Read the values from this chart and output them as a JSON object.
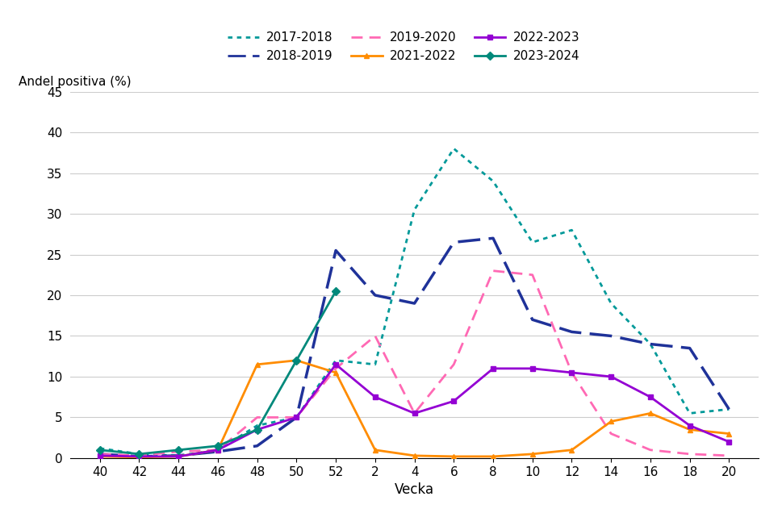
{
  "title": "",
  "ylabel": "Andel positiva (%)",
  "xlabel": "Vecka",
  "ylim": [
    0,
    45
  ],
  "x_ticks_labels": [
    "40",
    "42",
    "44",
    "46",
    "48",
    "50",
    "52",
    "2",
    "4",
    "6",
    "8",
    "10",
    "12",
    "14",
    "16",
    "18",
    "20"
  ],
  "x_numeric": [
    40,
    42,
    44,
    46,
    48,
    50,
    52,
    54,
    56,
    58,
    60,
    62,
    64,
    66,
    68,
    70,
    72
  ],
  "series": [
    {
      "label": "2017-2018",
      "color": "#009999",
      "linestyle": "dotted",
      "linewidth": 2.0,
      "marker": null,
      "data": [
        1.2,
        0.5,
        0.3,
        1.0,
        4.0,
        5.0,
        12.0,
        11.5,
        30.5,
        38.0,
        34.0,
        26.5,
        28.0,
        19.0,
        14.0,
        5.5,
        6.0
      ]
    },
    {
      "label": "2018-2019",
      "color": "#1F3299",
      "linestyle": "dashed",
      "linewidth": 2.5,
      "marker": null,
      "data": [
        0.5,
        0.2,
        0.3,
        0.8,
        1.5,
        5.0,
        25.5,
        20.0,
        19.0,
        26.5,
        27.0,
        17.0,
        15.5,
        15.0,
        14.0,
        13.5,
        6.0
      ]
    },
    {
      "label": "2019-2020",
      "color": "#FF69B4",
      "linestyle": "dashed",
      "linewidth": 2.0,
      "marker": null,
      "data": [
        0.5,
        0.3,
        0.8,
        1.0,
        5.0,
        5.0,
        11.0,
        15.0,
        5.5,
        11.5,
        23.0,
        22.5,
        10.5,
        3.0,
        1.0,
        0.5,
        0.3
      ]
    },
    {
      "label": "2021-2022",
      "color": "#FF8C00",
      "linestyle": "solid",
      "linewidth": 2.0,
      "marker": "^",
      "markersize": 5,
      "data": [
        0.2,
        0.1,
        0.2,
        1.0,
        11.5,
        12.0,
        10.5,
        1.0,
        0.3,
        0.2,
        0.2,
        0.5,
        1.0,
        4.5,
        5.5,
        3.5,
        3.0
      ]
    },
    {
      "label": "2022-2023",
      "color": "#9400D3",
      "linestyle": "solid",
      "linewidth": 2.0,
      "marker": "s",
      "markersize": 5,
      "data": [
        0.3,
        0.2,
        0.2,
        1.0,
        3.5,
        5.0,
        11.5,
        7.5,
        5.5,
        7.0,
        11.0,
        11.0,
        10.5,
        10.0,
        7.5,
        4.0,
        2.0
      ]
    },
    {
      "label": "2023-2024",
      "color": "#00897B",
      "linestyle": "solid",
      "linewidth": 2.0,
      "marker": "D",
      "markersize": 5,
      "data": [
        1.0,
        0.5,
        1.0,
        1.5,
        3.5,
        12.0,
        20.5,
        null,
        null,
        null,
        null,
        null,
        null,
        null,
        null,
        null,
        null
      ]
    }
  ]
}
